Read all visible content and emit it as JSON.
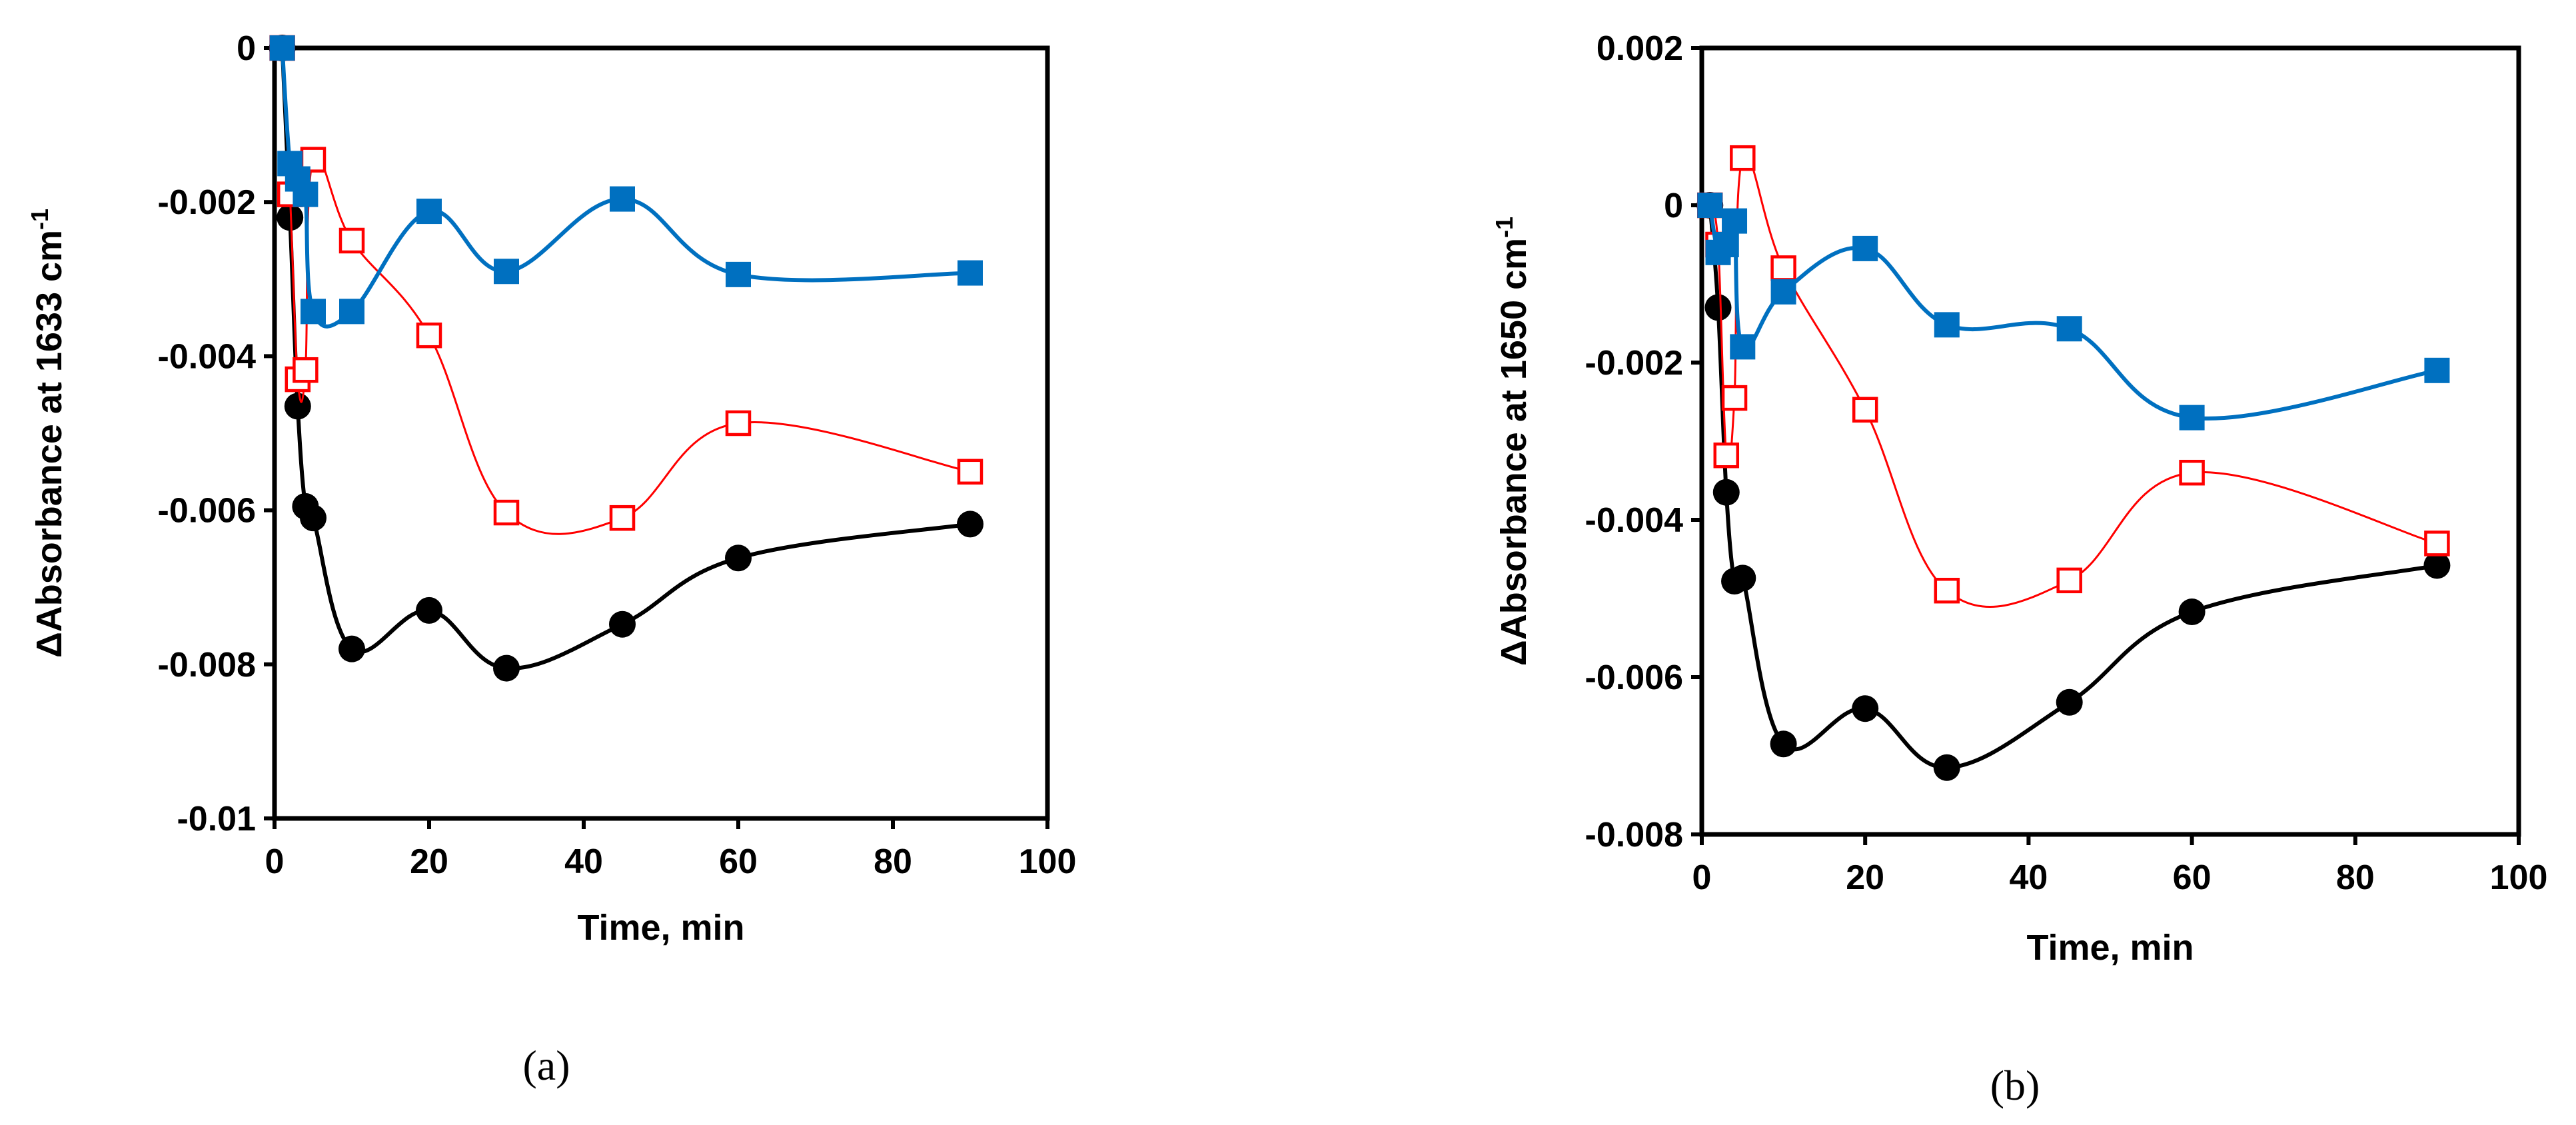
{
  "chart_data": [
    {
      "type": "line",
      "caption": "(a)",
      "title": "",
      "xlabel": "Time, min",
      "ylabel_prefix": "ΔAbsorbance at 1633 cm",
      "ylabel_sup": "-1",
      "xlim": [
        0,
        100
      ],
      "ylim": [
        -0.01,
        0
      ],
      "xticks": [
        "0",
        "20",
        "40",
        "60",
        "80",
        "100"
      ],
      "yticks": [
        "0",
        "-0.002",
        "-0.004",
        "-0.006",
        "-0.008",
        "-0.01"
      ],
      "series": [
        {
          "name": "filled circles",
          "marker": "circle-filled",
          "color": "#000000",
          "x": [
            1,
            2,
            3,
            4,
            5,
            10,
            20,
            30,
            45,
            60,
            90
          ],
          "y": [
            0,
            -0.0022,
            -0.00465,
            -0.00595,
            -0.0061,
            -0.0078,
            -0.0073,
            -0.00805,
            -0.00748,
            -0.00662,
            -0.00618
          ]
        },
        {
          "name": "open squares",
          "marker": "square-open",
          "color": "#ff0000",
          "x": [
            1,
            2,
            3,
            4,
            5,
            10,
            20,
            30,
            45,
            60,
            90
          ],
          "y": [
            0,
            -0.0019,
            -0.0043,
            -0.00418,
            -0.00145,
            -0.0025,
            -0.00373,
            -0.00603,
            -0.0061,
            -0.00487,
            -0.0055
          ]
        },
        {
          "name": "filled squares",
          "marker": "square-filled",
          "color": "#0070c0",
          "x": [
            1,
            2,
            3,
            4,
            5,
            10,
            20,
            30,
            45,
            60,
            90
          ],
          "y": [
            0,
            -0.0015,
            -0.0017,
            -0.0019,
            -0.00342,
            -0.00342,
            -0.00212,
            -0.0029,
            -0.00196,
            -0.00294,
            -0.00292
          ]
        }
      ]
    },
    {
      "type": "line",
      "caption": "(b)",
      "title": "",
      "xlabel": "Time, min",
      "ylabel_prefix": "ΔAbsorbance at 1650 cm",
      "ylabel_sup": "-1",
      "xlim": [
        0,
        100
      ],
      "ylim": [
        -0.008,
        0.002
      ],
      "xticks": [
        "0",
        "20",
        "40",
        "60",
        "80",
        "100"
      ],
      "yticks": [
        "0.002",
        "0",
        "-0.002",
        "-0.004",
        "-0.006",
        "-0.008"
      ],
      "series": [
        {
          "name": "filled circles",
          "marker": "circle-filled",
          "color": "#000000",
          "x": [
            1,
            2,
            3,
            4,
            5,
            10,
            20,
            30,
            45,
            60,
            90
          ],
          "y": [
            0,
            -0.0013,
            -0.00365,
            -0.00478,
            -0.00474,
            -0.00685,
            -0.0064,
            -0.00715,
            -0.00632,
            -0.00517,
            -0.00458
          ]
        },
        {
          "name": "open squares",
          "marker": "square-open",
          "color": "#ff0000",
          "x": [
            1,
            2,
            3,
            4,
            5,
            10,
            20,
            30,
            45,
            60,
            90
          ],
          "y": [
            0,
            -0.0005,
            -0.00318,
            -0.00245,
            0.0006,
            -0.0008,
            -0.0026,
            -0.0049,
            -0.00477,
            -0.0034,
            -0.0043
          ]
        },
        {
          "name": "filled squares",
          "marker": "square-filled",
          "color": "#0070c0",
          "x": [
            1,
            2,
            3,
            4,
            5,
            10,
            20,
            30,
            45,
            60,
            90
          ],
          "y": [
            0,
            -0.0006,
            -0.0005,
            -0.0002,
            -0.0018,
            -0.0011,
            -0.00055,
            -0.00152,
            -0.00157,
            -0.0027,
            -0.0021
          ]
        }
      ]
    }
  ]
}
